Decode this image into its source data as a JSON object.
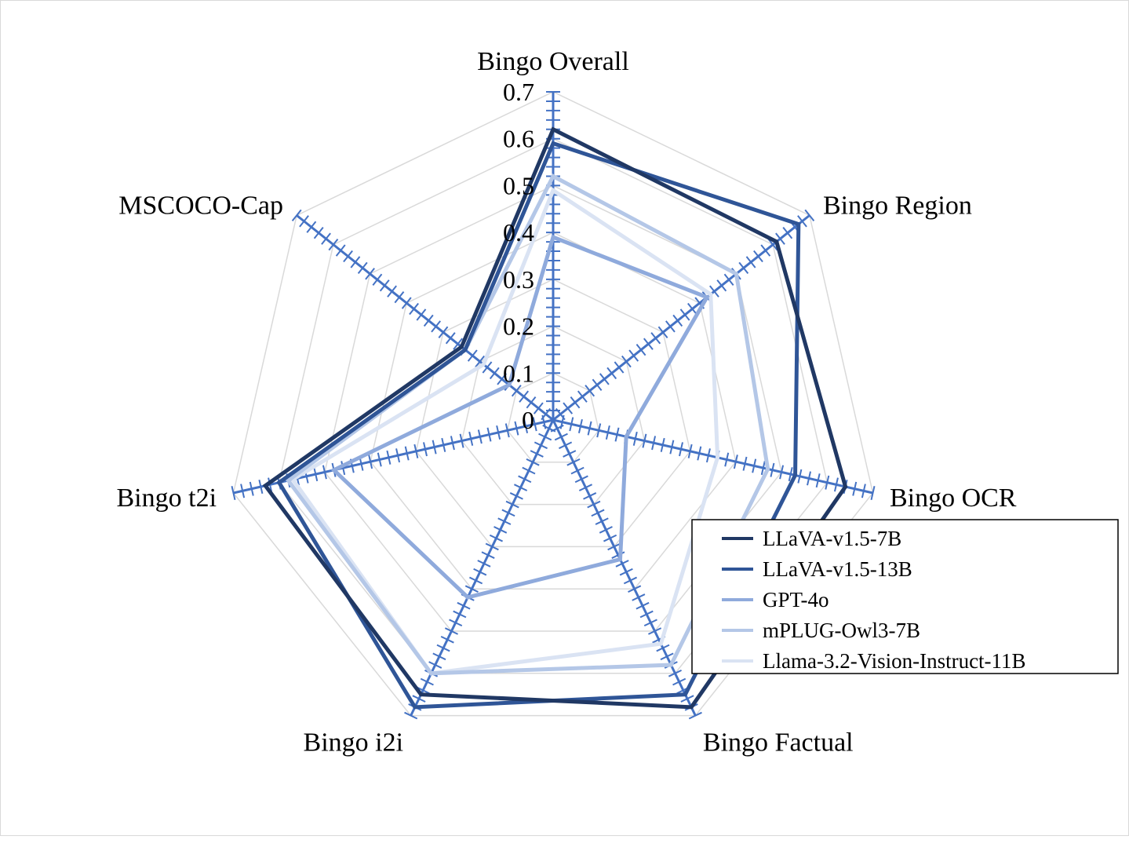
{
  "chart_data": {
    "type": "radar",
    "categories": [
      "Bingo Overall",
      "Bingo Region",
      "Bingo OCR",
      "Bingo Factual",
      "Bingo i2i",
      "Bingo t2i",
      "MSCOCO-Cap"
    ],
    "ylim": [
      0,
      0.7
    ],
    "ticks": [
      "0",
      "0.1",
      "0.2",
      "0.3",
      "0.4",
      "0.5",
      "0.6",
      "0.7"
    ],
    "grid": true,
    "legend_position": "bottom-right",
    "axis_color": "#4472c4",
    "grid_color": "#d9d9d9",
    "series": [
      {
        "name": "LLaVA-v1.5-7B",
        "color": "#203864",
        "values": [
          0.62,
          0.61,
          0.64,
          0.68,
          0.65,
          0.63,
          0.25
        ]
      },
      {
        "name": "LLaVA-v1.5-13B",
        "color": "#2f5597",
        "values": [
          0.59,
          0.67,
          0.53,
          0.65,
          0.68,
          0.6,
          0.24
        ]
      },
      {
        "name": "GPT-4o",
        "color": "#8faadc",
        "values": [
          0.39,
          0.42,
          0.16,
          0.33,
          0.42,
          0.48,
          0.12
        ]
      },
      {
        "name": "mPLUG-Owl3-7B",
        "color": "#b4c7e7",
        "values": [
          0.52,
          0.5,
          0.47,
          0.58,
          0.6,
          0.58,
          0.24
        ]
      },
      {
        "name": "Llama-3.2-Vision-Instruct-11B",
        "color": "#dae3f3",
        "values": [
          0.49,
          0.43,
          0.36,
          0.53,
          0.6,
          0.57,
          0.19
        ]
      }
    ]
  }
}
